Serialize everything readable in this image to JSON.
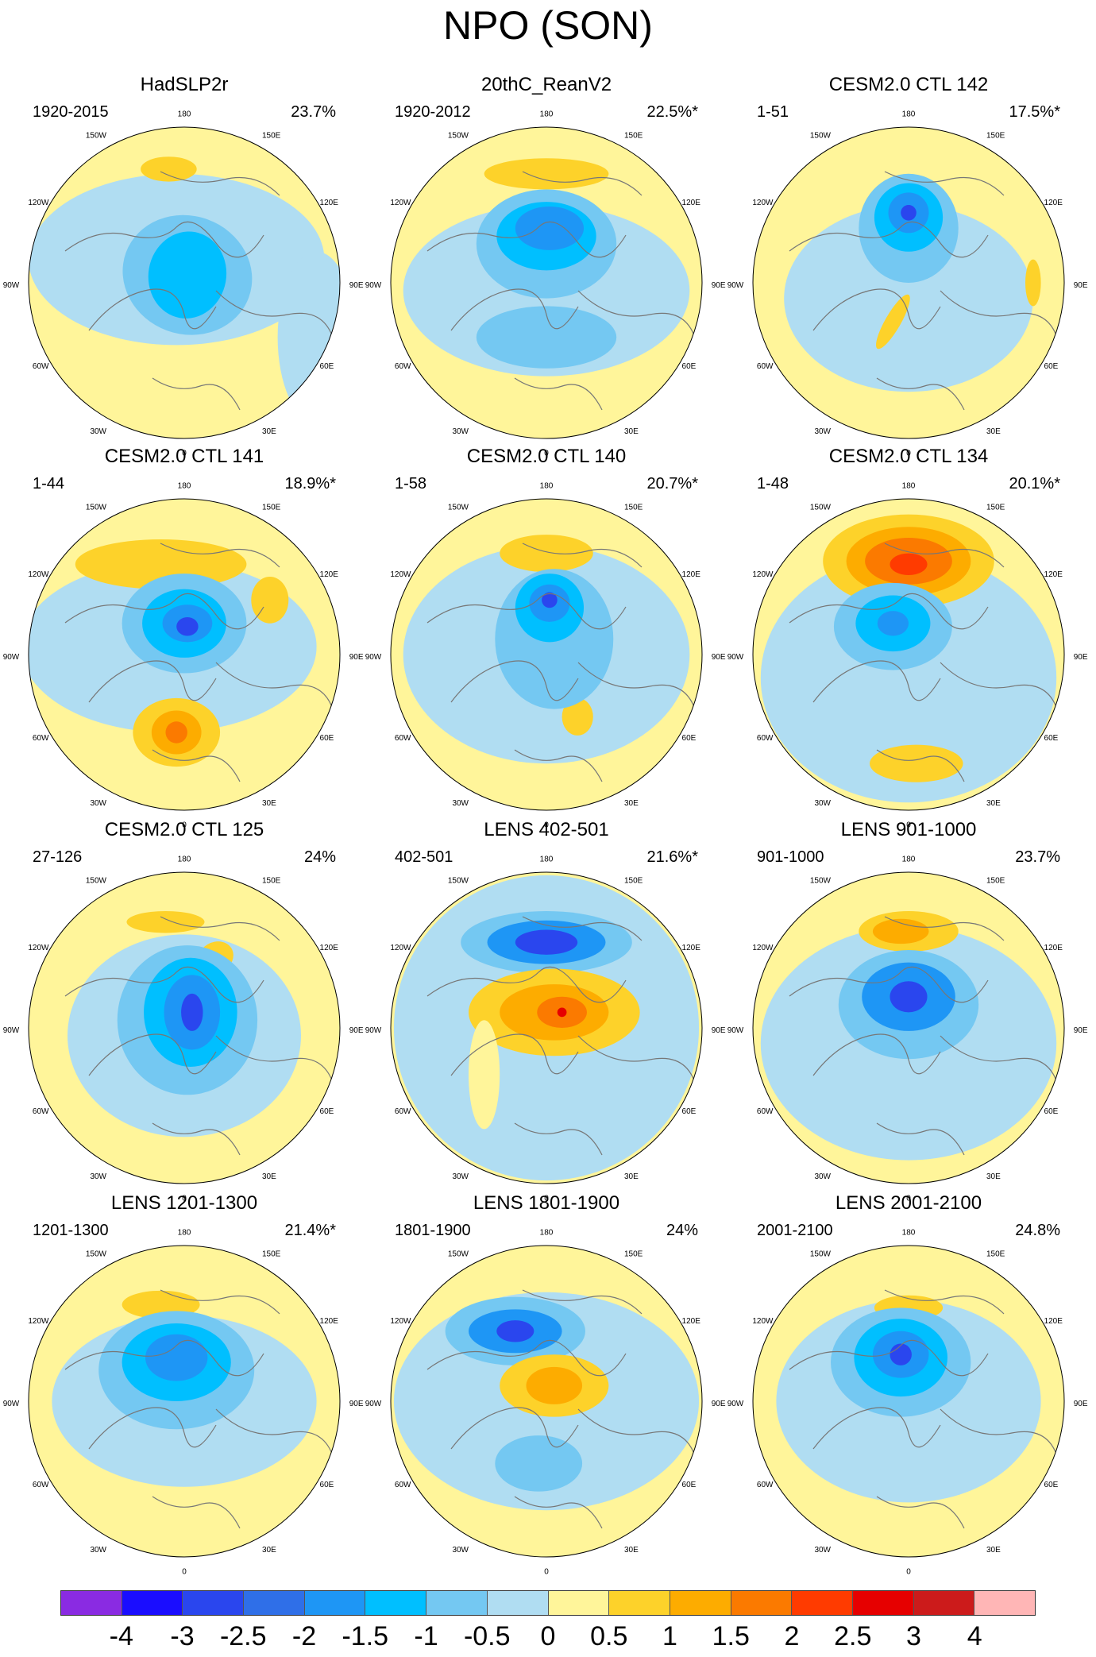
{
  "figure": {
    "title": "NPO (SON)",
    "map_labels": {
      "top": "180",
      "bottom": "0",
      "left": "90W",
      "right": "90E",
      "upper_left_1": "150W",
      "upper_left_2": "120W",
      "upper_right_1": "150E",
      "upper_right_2": "120E",
      "lower_left_1": "60W",
      "lower_left_2": "30W",
      "lower_right_1": "60E",
      "lower_right_2": "30E"
    },
    "panels": [
      {
        "title": "HadSLP2r",
        "period": "1920-2015",
        "percent": "23.7%"
      },
      {
        "title": "20thC_ReanV2",
        "period": "1920-2012",
        "percent": "22.5%*"
      },
      {
        "title": "CESM2.0 CTL 142",
        "period": "1-51",
        "percent": "17.5%*"
      },
      {
        "title": "CESM2.0 CTL 141",
        "period": "1-44",
        "percent": "18.9%*"
      },
      {
        "title": "CESM2.0 CTL 140",
        "period": "1-58",
        "percent": "20.7%*"
      },
      {
        "title": "CESM2.0 CTL 134",
        "period": "1-48",
        "percent": "20.1%*"
      },
      {
        "title": "CESM2.0 CTL 125",
        "period": "27-126",
        "percent": "24%"
      },
      {
        "title": "LENS 402-501",
        "period": "402-501",
        "percent": "21.6%*"
      },
      {
        "title": "LENS 901-1000",
        "period": "901-1000",
        "percent": "23.7%"
      },
      {
        "title": "LENS 1201-1300",
        "period": "1201-1300",
        "percent": "21.4%*"
      },
      {
        "title": "LENS 1801-1900",
        "period": "1801-1900",
        "percent": "24%"
      },
      {
        "title": "LENS 2001-2100",
        "period": "2001-2100",
        "percent": "24.8%"
      }
    ],
    "colorbar": {
      "colors": [
        "#8a2be2",
        "#1a0dff",
        "#2a46ee",
        "#2f6fe8",
        "#1e96f5",
        "#00bfff",
        "#74c8f2",
        "#b0ddf2",
        "#fff59a",
        "#fdd22a",
        "#fdac00",
        "#fb7a00",
        "#ff3b00",
        "#e60000",
        "#cc1b1b",
        "#ffb6b6"
      ],
      "labels": [
        "-4",
        "-3",
        "-2.5",
        "-2",
        "-1.5",
        "-1",
        "-0.5",
        "0",
        "0.5",
        "1",
        "1.5",
        "2",
        "2.5",
        "3",
        "4"
      ]
    }
  },
  "chart_data": {
    "type": "contour-map",
    "title": "NPO (SON)",
    "projection": "North polar stereographic",
    "variable": "regressed SLP anomaly pattern",
    "levels": [
      -4,
      -3,
      -2.5,
      -2,
      -1.5,
      -1,
      -0.5,
      0,
      0.5,
      1,
      1.5,
      2,
      2.5,
      3,
      4
    ],
    "panels": [
      {
        "title": "HadSLP2r",
        "period": "1920-2015",
        "explained_variance": "23.7%",
        "significant": false
      },
      {
        "title": "20thC_ReanV2",
        "period": "1920-2012",
        "explained_variance": "22.5%",
        "significant": true
      },
      {
        "title": "CESM2.0 CTL 142",
        "period": "1-51",
        "explained_variance": "17.5%",
        "significant": true
      },
      {
        "title": "CESM2.0 CTL 141",
        "period": "1-44",
        "explained_variance": "18.9%",
        "significant": true
      },
      {
        "title": "CESM2.0 CTL 140",
        "period": "1-58",
        "explained_variance": "20.7%",
        "significant": true
      },
      {
        "title": "CESM2.0 CTL 134",
        "period": "1-48",
        "explained_variance": "20.1%",
        "significant": true
      },
      {
        "title": "CESM2.0 CTL 125",
        "period": "27-126",
        "explained_variance": "24%",
        "significant": false
      },
      {
        "title": "LENS 402-501",
        "period": "402-501",
        "explained_variance": "21.6%",
        "significant": true
      },
      {
        "title": "LENS 901-1000",
        "period": "901-1000",
        "explained_variance": "23.7%",
        "significant": false
      },
      {
        "title": "LENS 1201-1300",
        "period": "1201-1300",
        "explained_variance": "21.4%",
        "significant": true
      },
      {
        "title": "LENS 1801-1900",
        "period": "1801-1900",
        "explained_variance": "24%",
        "significant": false
      },
      {
        "title": "LENS 2001-2100",
        "period": "2001-2100",
        "explained_variance": "24.8%",
        "significant": false
      }
    ]
  }
}
